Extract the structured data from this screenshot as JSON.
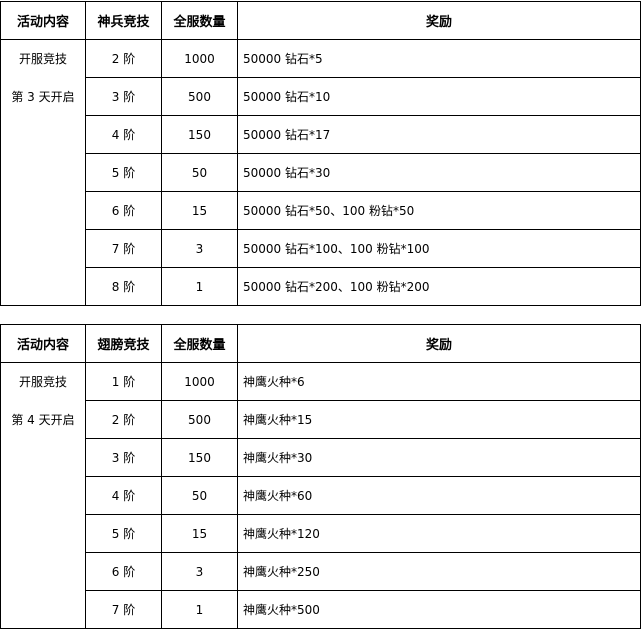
{
  "tables": [
    {
      "headers": [
        "活动内容",
        "神兵竞技",
        "全服数量",
        "奖励"
      ],
      "activity": [
        "开服竞技",
        "第 3 天开启"
      ],
      "rows": [
        {
          "tier": "2 阶",
          "count": "1000",
          "reward": "50000 钻石*5"
        },
        {
          "tier": "3 阶",
          "count": "500",
          "reward": "50000 钻石*10"
        },
        {
          "tier": "4 阶",
          "count": "150",
          "reward": "50000 钻石*17"
        },
        {
          "tier": "5 阶",
          "count": "50",
          "reward": "50000 钻石*30"
        },
        {
          "tier": "6 阶",
          "count": "15",
          "reward": "50000 钻石*50、100 粉钻*50"
        },
        {
          "tier": "7 阶",
          "count": "3",
          "reward": "50000 钻石*100、100 粉钻*100"
        },
        {
          "tier": "8 阶",
          "count": "1",
          "reward": "50000 钻石*200、100 粉钻*200"
        }
      ]
    },
    {
      "headers": [
        "活动内容",
        "翅膀竞技",
        "全服数量",
        "奖励"
      ],
      "activity": [
        "开服竞技",
        "第 4 天开启"
      ],
      "rows": [
        {
          "tier": "1 阶",
          "count": "1000",
          "reward": "神鹰火种*6"
        },
        {
          "tier": "2 阶",
          "count": "500",
          "reward": "神鹰火种*15"
        },
        {
          "tier": "3 阶",
          "count": "150",
          "reward": "神鹰火种*30"
        },
        {
          "tier": "4 阶",
          "count": "50",
          "reward": "神鹰火种*60"
        },
        {
          "tier": "5 阶",
          "count": "15",
          "reward": "神鹰火种*120"
        },
        {
          "tier": "6 阶",
          "count": "3",
          "reward": "神鹰火种*250"
        },
        {
          "tier": "7 阶",
          "count": "1",
          "reward": "神鹰火种*500"
        }
      ]
    }
  ]
}
